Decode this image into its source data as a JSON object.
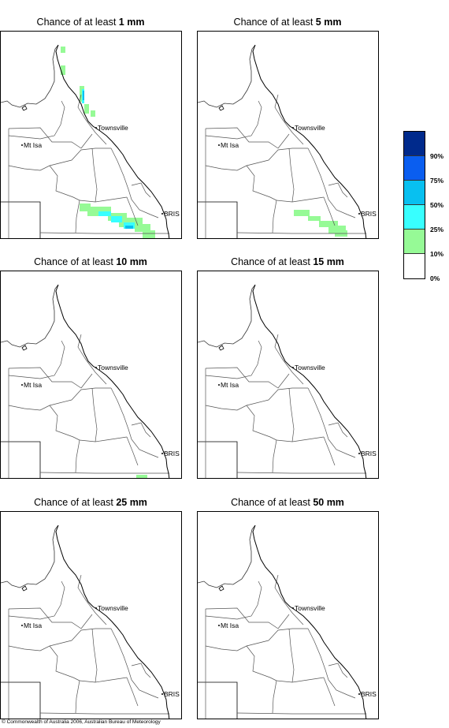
{
  "panels": [
    {
      "id": "p1",
      "prefix": "Chance of at least ",
      "amount": "1 mm"
    },
    {
      "id": "p5",
      "prefix": "Chance of at least ",
      "amount": "5 mm"
    },
    {
      "id": "p10",
      "prefix": "Chance of at least ",
      "amount": "10 mm"
    },
    {
      "id": "p15",
      "prefix": "Chance of at least ",
      "amount": "15 mm"
    },
    {
      "id": "p25",
      "prefix": "Chance of at least ",
      "amount": "25 mm"
    },
    {
      "id": "p50",
      "prefix": "Chance of at least ",
      "amount": "50 mm"
    }
  ],
  "places": {
    "townsville": "Townsville",
    "mt_isa": "Mt Isa",
    "bris": "BRIS"
  },
  "legend": {
    "labels": [
      "90%",
      "75%",
      "50%",
      "25%",
      "10%",
      "0%"
    ],
    "colors": [
      "#002a8c",
      "#0a5ef0",
      "#08c0f0",
      "#38ffff",
      "#96fa96",
      "#ffffff"
    ]
  },
  "copyright": "© Commonwealth of Australia 2006, Australian Bureau of Meteorology"
}
